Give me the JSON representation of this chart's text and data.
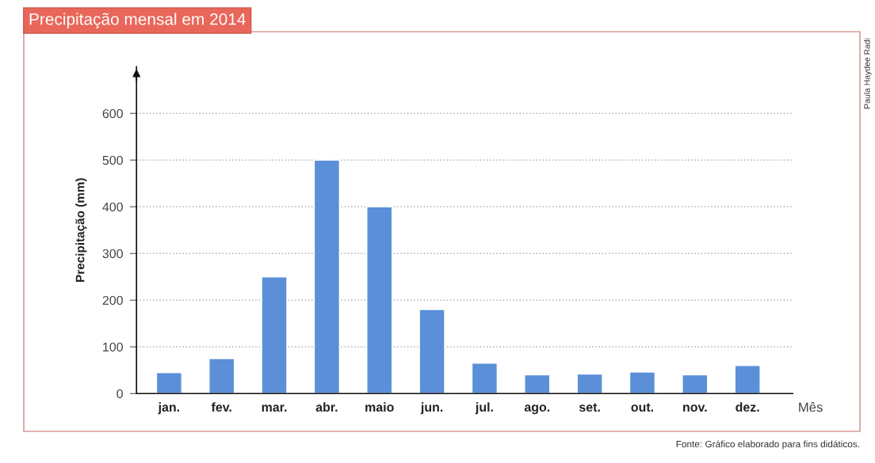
{
  "chart_data": {
    "type": "bar",
    "title": "Precipitação mensal em 2014",
    "xlabel": "Mês",
    "ylabel": "Precipitação (mm)",
    "categories": [
      "jan.",
      "fev.",
      "mar.",
      "abr.",
      "maio",
      "jun.",
      "jul.",
      "ago.",
      "set.",
      "out.",
      "nov.",
      "dez."
    ],
    "values": [
      45,
      75,
      250,
      500,
      400,
      180,
      65,
      40,
      42,
      46,
      40,
      60
    ],
    "color": "#5b8fd8",
    "ylim": [
      0,
      700
    ],
    "yticks": [
      0,
      100,
      200,
      300,
      400,
      500,
      600
    ],
    "grid": "y",
    "annotations": [
      "Paula Haydee Radi",
      "Fonte: Gráfico elaborado para fins didáticos."
    ]
  }
}
